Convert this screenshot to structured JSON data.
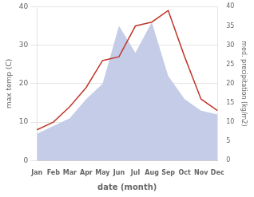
{
  "chart_data": {
    "type": "line",
    "categories": [
      "Jan",
      "Feb",
      "Mar",
      "Apr",
      "May",
      "Jun",
      "Jul",
      "Aug",
      "Sep",
      "Oct",
      "Nov",
      "Dec"
    ],
    "series": [
      {
        "type": "area",
        "color": "#c5cce8",
        "axis": "y2",
        "values": [
          7,
          9,
          11,
          16,
          20,
          35,
          28,
          36,
          22,
          16,
          13,
          12
        ]
      },
      {
        "type": "line",
        "color": "#c0392b",
        "values": [
          8,
          10,
          14,
          19,
          26,
          27,
          35,
          36,
          39,
          27,
          16,
          13
        ]
      }
    ],
    "xlabel": "date (month)",
    "ylabel": "max temp (C)",
    "y2label": "med. precipitation (kg/m2)",
    "ylim": [
      0,
      40
    ],
    "yticks": [
      0,
      10,
      20,
      30,
      40
    ],
    "y2lim": [
      0,
      40
    ],
    "y2ticks": [
      0,
      5,
      10,
      15,
      20,
      25,
      30,
      35,
      40
    ],
    "grid": true
  }
}
